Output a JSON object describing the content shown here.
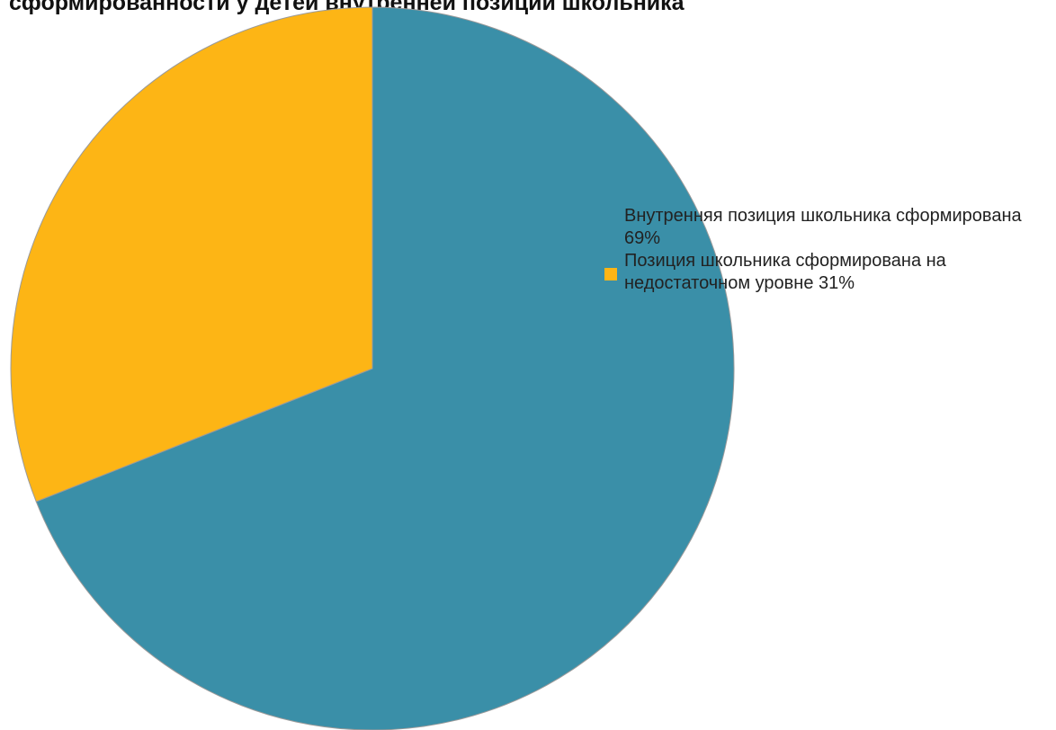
{
  "chart_data": {
    "type": "pie",
    "title": "сформированности у детей внутренней позиции школьника",
    "slices": [
      {
        "label": "Внутренняя позиция школьника сформирована 69%",
        "value": 69,
        "color": "#3a8fa8",
        "show_swatch": false
      },
      {
        "label": "Позиция школьника сформирована на недостаточном уровне 31%",
        "value": 31,
        "color": "#fdb515",
        "show_swatch": true
      }
    ],
    "start_angle_deg": 0,
    "direction": "clockwise",
    "legend_position": "right"
  }
}
